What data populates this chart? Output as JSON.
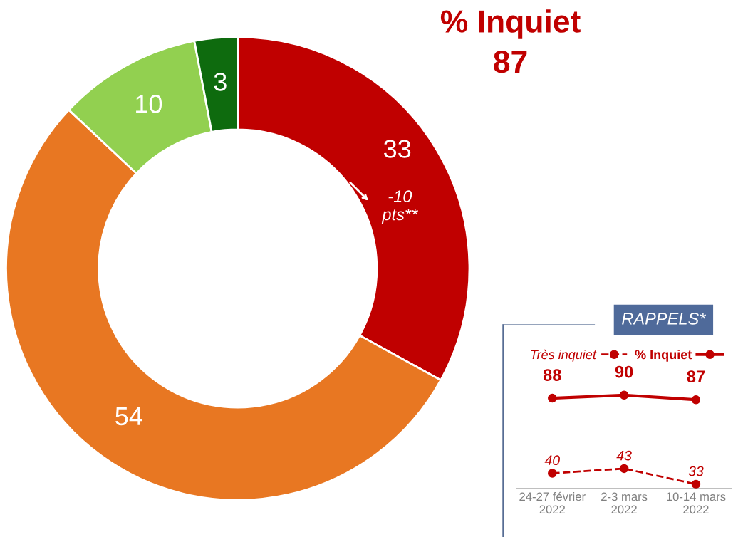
{
  "chart_data": [
    {
      "type": "donut",
      "title": "% Inquiet",
      "subtitle": "87",
      "categories": [
        null,
        null,
        null,
        null
      ],
      "values": [
        33,
        54,
        10,
        3
      ],
      "colors": [
        "#c00000",
        "#e87722",
        "#92d050",
        "#0e6b0e"
      ],
      "data_labels": true,
      "annotations": [
        "-10 pts**"
      ]
    },
    {
      "type": "line",
      "title": "RAPPELS*",
      "categories": [
        "24-27 février 2022",
        "2-3 mars 2022",
        "10-14 mars 2022"
      ],
      "tick_labels": "x",
      "legend": "top",
      "marker": "circle",
      "grid": false,
      "series": [
        {
          "name": "Très inquiet",
          "color": "#c00000",
          "values": [
            40,
            43,
            33
          ],
          "line_style": "dashed"
        },
        {
          "name": "% Inquiet",
          "color": "#c00000",
          "values": [
            88,
            90,
            87
          ],
          "line_style": "solid"
        }
      ],
      "data_labels": true
    }
  ]
}
